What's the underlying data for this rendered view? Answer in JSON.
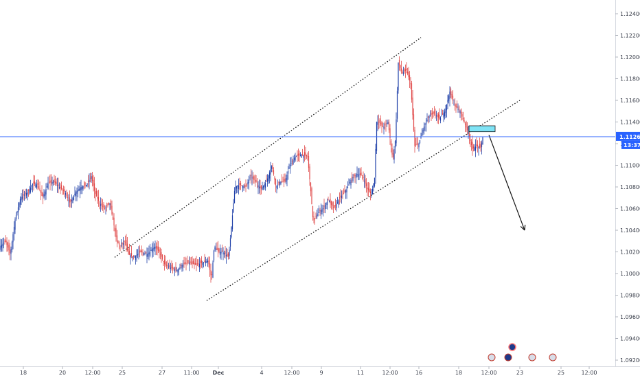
{
  "chart_data": {
    "type": "candlestick",
    "y_axis": {
      "side": "right",
      "ylim": [
        1.0915,
        1.125
      ],
      "tick_labels": [
        "1.12400",
        "1.12200",
        "1.12000",
        "1.11800",
        "1.11600",
        "1.11400",
        "1.11200",
        "1.11000",
        "1.10800",
        "1.10600",
        "1.10400",
        "1.10200",
        "1.10000",
        "1.09800",
        "1.09600",
        "1.09400",
        "1.09200"
      ],
      "tick_values": [
        1.124,
        1.122,
        1.12,
        1.118,
        1.116,
        1.114,
        1.112,
        1.11,
        1.108,
        1.106,
        1.104,
        1.102,
        1.1,
        1.098,
        1.096,
        1.094,
        1.092
      ]
    },
    "x_axis": {
      "labels": [
        {
          "text": "18",
          "bold": false
        },
        {
          "text": "20",
          "bold": false
        },
        {
          "text": "12:00",
          "bold": false
        },
        {
          "text": "25",
          "bold": false
        },
        {
          "text": "27",
          "bold": false
        },
        {
          "text": "11:00",
          "bold": false
        },
        {
          "text": "Dec",
          "bold": true
        },
        {
          "text": "4",
          "bold": false
        },
        {
          "text": "12:00",
          "bold": false
        },
        {
          "text": "9",
          "bold": false
        },
        {
          "text": "11",
          "bold": false
        },
        {
          "text": "12:00",
          "bold": false
        },
        {
          "text": "16",
          "bold": false
        },
        {
          "text": "18",
          "bold": false
        },
        {
          "text": "12:00",
          "bold": false
        },
        {
          "text": "23",
          "bold": false
        },
        {
          "text": "25",
          "bold": false
        },
        {
          "text": "12:00",
          "bold": false
        }
      ]
    },
    "price_line": {
      "value": 1.11264,
      "label": "1.11264",
      "countdown": "13:37",
      "color": "#2962ff"
    },
    "price_path": [
      [
        0,
        1.1025
      ],
      [
        8,
        1.103
      ],
      [
        15,
        1.1018
      ],
      [
        22,
        1.105
      ],
      [
        30,
        1.107
      ],
      [
        40,
        1.1075
      ],
      [
        48,
        1.1083
      ],
      [
        55,
        1.1082
      ],
      [
        62,
        1.107
      ],
      [
        70,
        1.1083
      ],
      [
        78,
        1.1085
      ],
      [
        86,
        1.108
      ],
      [
        95,
        1.1075
      ],
      [
        102,
        1.1065
      ],
      [
        110,
        1.1075
      ],
      [
        118,
        1.108
      ],
      [
        126,
        1.1082
      ],
      [
        133,
        1.109
      ],
      [
        138,
        1.1075
      ],
      [
        145,
        1.1065
      ],
      [
        152,
        1.106
      ],
      [
        160,
        1.1065
      ],
      [
        165,
        1.1048
      ],
      [
        170,
        1.103
      ],
      [
        175,
        1.1025
      ],
      [
        182,
        1.103
      ],
      [
        187,
        1.1018
      ],
      [
        195,
        1.1015
      ],
      [
        205,
        1.102
      ],
      [
        215,
        1.1018
      ],
      [
        225,
        1.1025
      ],
      [
        232,
        1.102
      ],
      [
        240,
        1.1008
      ],
      [
        250,
        1.1005
      ],
      [
        258,
        1.1003
      ],
      [
        265,
        1.1008
      ],
      [
        275,
        1.101
      ],
      [
        285,
        1.1008
      ],
      [
        295,
        1.101
      ],
      [
        303,
        1.1012
      ],
      [
        308,
        1.0995
      ],
      [
        312,
        1.1025
      ],
      [
        318,
        1.102
      ],
      [
        325,
        1.102
      ],
      [
        333,
        1.1015
      ],
      [
        338,
        1.105
      ],
      [
        342,
        1.108
      ],
      [
        350,
        1.1082
      ],
      [
        358,
        1.108
      ],
      [
        365,
        1.109
      ],
      [
        372,
        1.1085
      ],
      [
        380,
        1.1078
      ],
      [
        388,
        1.1085
      ],
      [
        396,
        1.11
      ],
      [
        402,
        1.108
      ],
      [
        408,
        1.1085
      ],
      [
        415,
        1.1085
      ],
      [
        422,
        1.11
      ],
      [
        430,
        1.1108
      ],
      [
        440,
        1.111
      ],
      [
        448,
        1.1108
      ],
      [
        452,
        1.108
      ],
      [
        456,
        1.1048
      ],
      [
        462,
        1.1055
      ],
      [
        470,
        1.106
      ],
      [
        478,
        1.1068
      ],
      [
        486,
        1.106
      ],
      [
        495,
        1.107
      ],
      [
        505,
        1.1078
      ],
      [
        512,
        1.1088
      ],
      [
        520,
        1.1092
      ],
      [
        528,
        1.109
      ],
      [
        535,
        1.1078
      ],
      [
        541,
        1.1073
      ],
      [
        546,
        1.109
      ],
      [
        548,
        1.114
      ],
      [
        552,
        1.114
      ],
      [
        558,
        1.1135
      ],
      [
        565,
        1.114
      ],
      [
        572,
        1.1105
      ],
      [
        576,
        1.1125
      ],
      [
        580,
        1.1195
      ],
      [
        586,
        1.1185
      ],
      [
        592,
        1.1188
      ],
      [
        598,
        1.1175
      ],
      [
        604,
        1.1118
      ],
      [
        610,
        1.112
      ],
      [
        617,
        1.1135
      ],
      [
        624,
        1.1145
      ],
      [
        632,
        1.1148
      ],
      [
        640,
        1.1143
      ],
      [
        648,
        1.115
      ],
      [
        655,
        1.1168
      ],
      [
        662,
        1.1155
      ],
      [
        670,
        1.115
      ],
      [
        676,
        1.114
      ],
      [
        682,
        1.113
      ],
      [
        688,
        1.1115
      ],
      [
        694,
        1.1118
      ],
      [
        700,
        1.1116
      ],
      [
        703,
        1.1126
      ]
    ],
    "drawings": {
      "channel_upper": [
        [
          167,
          1.1015
        ],
        [
          613,
          1.1218
        ]
      ],
      "channel_lower": [
        [
          301,
          1.0975
        ],
        [
          757,
          1.116
        ]
      ],
      "resistance_box": {
        "x1": [
          683,
          1.11365
        ],
        "x2": [
          721,
          1.1131
        ],
        "color": "#7fe3f5"
      },
      "projection_arrow": [
        [
          712,
          1.1128
        ],
        [
          764,
          1.104
        ]
      ]
    },
    "legend": "none",
    "grid": false
  }
}
